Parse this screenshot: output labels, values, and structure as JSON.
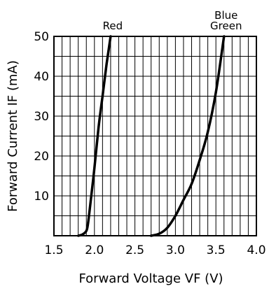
{
  "chart_data": {
    "type": "line",
    "xlabel": "Forward Voltage VF (V)",
    "ylabel": "Forward Current IF (mA)",
    "xlim": [
      1.5,
      4.0
    ],
    "ylim": [
      0,
      50
    ],
    "grid": true,
    "x_ticks": [
      "1.5",
      "2.0",
      "2.5",
      "3.0",
      "3.5",
      "4.0"
    ],
    "y_ticks": [
      "10",
      "20",
      "30",
      "40",
      "50"
    ],
    "series": [
      {
        "name": "Red",
        "label_lines": [
          "Red"
        ],
        "x": [
          1.8,
          1.85,
          1.9,
          1.92,
          1.95,
          2.0,
          2.05,
          2.1,
          2.15,
          2.2
        ],
        "y": [
          0,
          0.3,
          1.2,
          3,
          8,
          17,
          27,
          35,
          43,
          50
        ]
      },
      {
        "name": "Blue Green",
        "label_lines": [
          "Blue",
          "Green"
        ],
        "x": [
          2.7,
          2.8,
          2.9,
          3.0,
          3.1,
          3.2,
          3.3,
          3.4,
          3.5,
          3.6
        ],
        "y": [
          0,
          0.5,
          2,
          5,
          9,
          13,
          19,
          26,
          36,
          50
        ]
      }
    ]
  }
}
